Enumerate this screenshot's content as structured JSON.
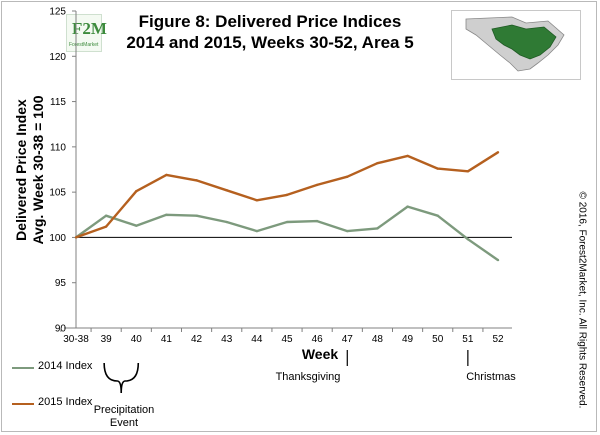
{
  "logo": {
    "mark": "F2M",
    "word": "ForestMarket"
  },
  "map": {
    "icon": "south-carolina-region-map-icon",
    "highlight_color": "#2f7a34",
    "base_color": "#cfcfcf"
  },
  "copyright": "© 2016, Forest2Market, Inc. All Rights Reserved.",
  "annotations": {
    "precipitation": "Precipitation\nEvent",
    "thanksgiving": "Thanksgiving",
    "christmas": "Christmas"
  },
  "chart_data": {
    "type": "line",
    "title": "Figure 8: Delivered Price Indices\n2014 and 2015, Weeks 30-52, Area 5",
    "xlabel": "Week",
    "ylabel": "Delivered Price Index\nAvg. Week 30-38 = 100",
    "categories": [
      "30-38",
      "39",
      "40",
      "41",
      "42",
      "43",
      "44",
      "45",
      "46",
      "47",
      "48",
      "49",
      "50",
      "51",
      "52"
    ],
    "ylim": [
      90,
      125
    ],
    "yticks": [
      90,
      95,
      100,
      105,
      110,
      115,
      120,
      125
    ],
    "baseline": 100,
    "grid": false,
    "legend": "bottom-left",
    "series": [
      {
        "name": "2014 Index",
        "color": "#7d9a7d",
        "values": [
          100.0,
          102.4,
          101.3,
          102.5,
          102.4,
          101.7,
          100.7,
          101.7,
          101.8,
          100.7,
          101.0,
          103.4,
          102.4,
          99.8,
          97.5
        ]
      },
      {
        "name": "2015 Index",
        "color": "#b5601f",
        "values": [
          100.0,
          101.2,
          105.1,
          106.9,
          106.3,
          105.2,
          104.1,
          104.7,
          105.8,
          106.7,
          108.2,
          109.0,
          107.6,
          107.3,
          109.4
        ]
      }
    ]
  }
}
